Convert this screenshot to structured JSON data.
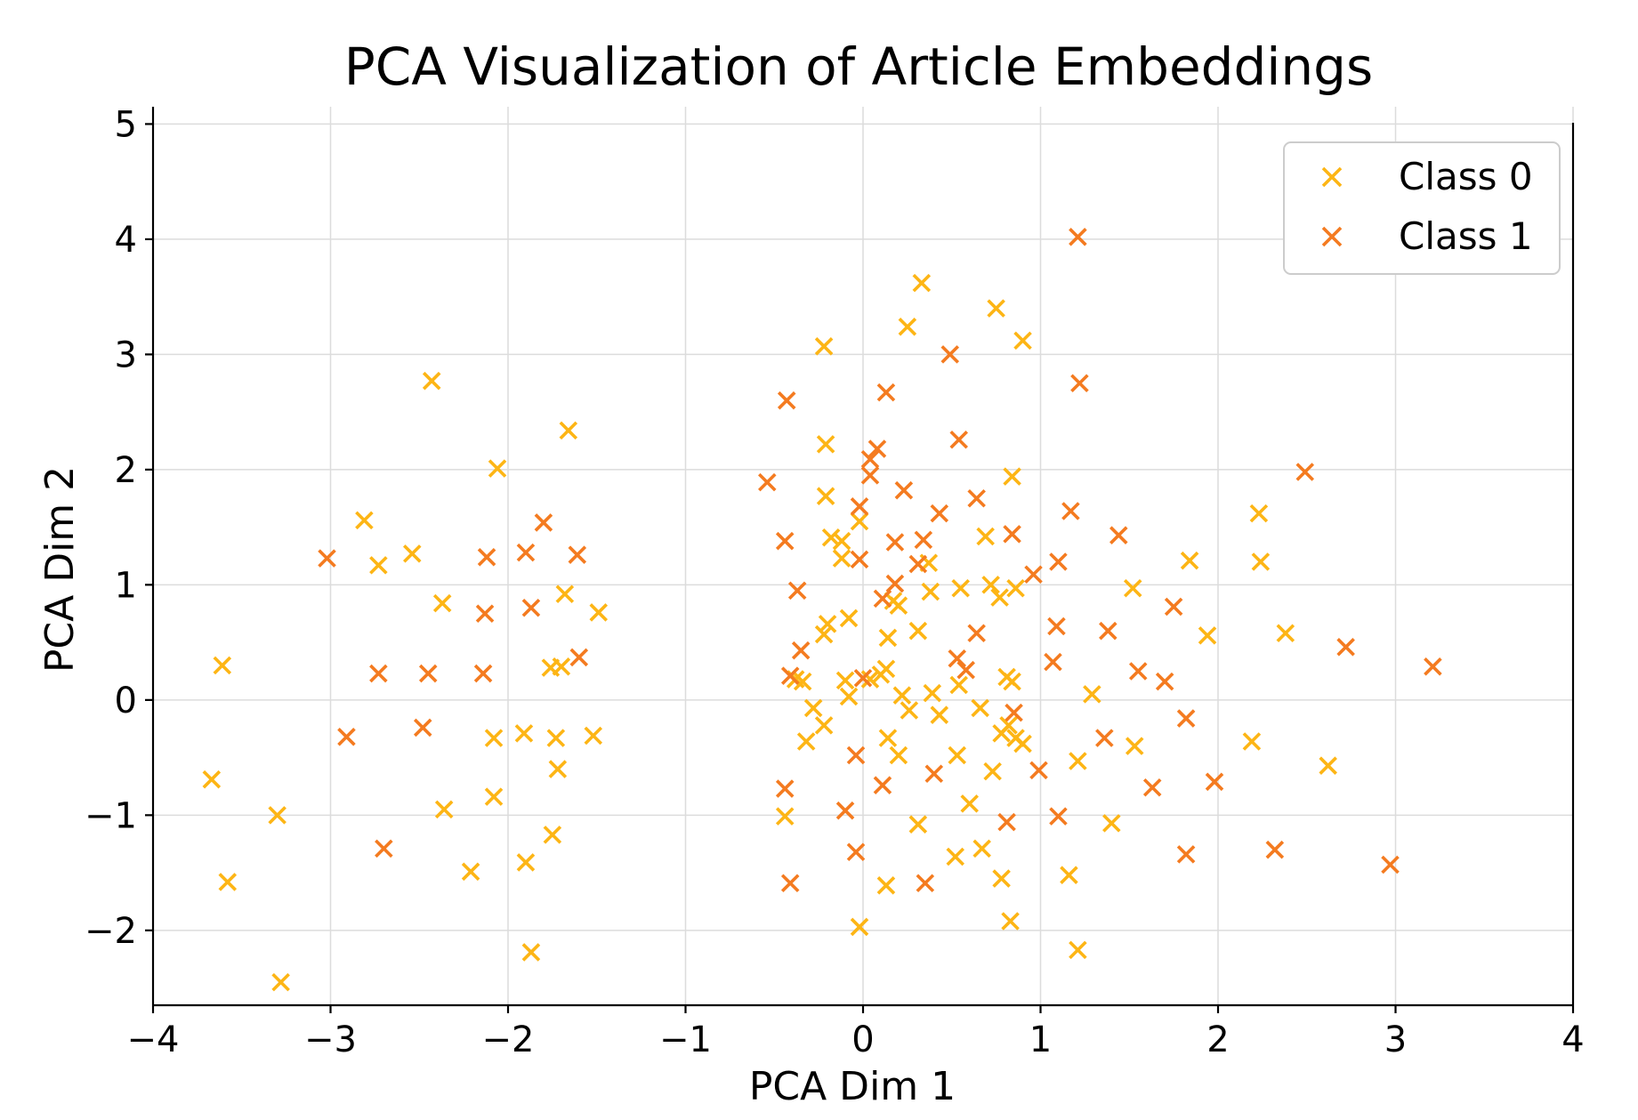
{
  "chart_data": {
    "type": "scatter",
    "title": "PCA Visualization of Article Embeddings",
    "xlabel": "PCA Dim 1",
    "ylabel": "PCA Dim 2",
    "xlim": [
      -4,
      4
    ],
    "ylim": [
      -2.65,
      5.15
    ],
    "xticks": [
      -4,
      -3,
      -2,
      -1,
      0,
      1,
      2,
      3,
      4
    ],
    "yticks": [
      -2,
      -1,
      0,
      1,
      2,
      3,
      4,
      5
    ],
    "xtick_labels": [
      "−4",
      "−3",
      "−2",
      "−1",
      "0",
      "1",
      "2",
      "3",
      "4"
    ],
    "ytick_labels": [
      "−2",
      "−1",
      "0",
      "1",
      "2",
      "3",
      "4",
      "5"
    ],
    "grid": true,
    "marker": "x",
    "legend_position": "top-right",
    "series": [
      {
        "name": "Class 0",
        "color": "#FDB515",
        "points": [
          [
            0.33,
            3.62
          ],
          [
            0.75,
            3.4
          ],
          [
            0.9,
            3.12
          ],
          [
            0.25,
            3.24
          ],
          [
            -0.22,
            3.07
          ],
          [
            -2.43,
            2.77
          ],
          [
            -1.66,
            2.34
          ],
          [
            -0.21,
            2.22
          ],
          [
            -2.06,
            2.01
          ],
          [
            0.84,
            1.94
          ],
          [
            -0.21,
            1.77
          ],
          [
            2.23,
            1.62
          ],
          [
            -2.81,
            1.56
          ],
          [
            -0.18,
            1.41
          ],
          [
            -0.12,
            1.38
          ],
          [
            -0.02,
            1.55
          ],
          [
            0.69,
            1.42
          ],
          [
            -2.54,
            1.27
          ],
          [
            -2.73,
            1.17
          ],
          [
            -0.12,
            1.23
          ],
          [
            0.37,
            1.19
          ],
          [
            1.84,
            1.21
          ],
          [
            2.24,
            1.2
          ],
          [
            -1.68,
            0.92
          ],
          [
            0.38,
            0.94
          ],
          [
            0.55,
            0.97
          ],
          [
            0.72,
            1.0
          ],
          [
            0.77,
            0.89
          ],
          [
            0.86,
            0.97
          ],
          [
            1.52,
            0.97
          ],
          [
            0.2,
            0.82
          ],
          [
            0.17,
            0.86
          ],
          [
            -2.37,
            0.84
          ],
          [
            -1.49,
            0.76
          ],
          [
            -0.22,
            0.57
          ],
          [
            -0.2,
            0.66
          ],
          [
            -0.08,
            0.71
          ],
          [
            0.14,
            0.54
          ],
          [
            0.31,
            0.6
          ],
          [
            1.94,
            0.56
          ],
          [
            2.38,
            0.58
          ],
          [
            -3.61,
            0.3
          ],
          [
            -1.76,
            0.28
          ],
          [
            -1.7,
            0.29
          ],
          [
            -0.38,
            0.18
          ],
          [
            -0.34,
            0.16
          ],
          [
            -0.1,
            0.17
          ],
          [
            0.04,
            0.18
          ],
          [
            0.1,
            0.22
          ],
          [
            0.13,
            0.27
          ],
          [
            0.54,
            0.13
          ],
          [
            0.81,
            0.2
          ],
          [
            0.84,
            0.16
          ],
          [
            -0.08,
            0.03
          ],
          [
            0.22,
            0.04
          ],
          [
            0.39,
            0.06
          ],
          [
            1.29,
            0.05
          ],
          [
            -0.28,
            -0.07
          ],
          [
            0.26,
            -0.09
          ],
          [
            0.43,
            -0.13
          ],
          [
            0.66,
            -0.07
          ],
          [
            -0.22,
            -0.22
          ],
          [
            0.82,
            -0.22
          ],
          [
            0.78,
            -0.29
          ],
          [
            0.86,
            -0.33
          ],
          [
            -1.91,
            -0.29
          ],
          [
            -1.73,
            -0.33
          ],
          [
            -1.52,
            -0.31
          ],
          [
            -2.08,
            -0.33
          ],
          [
            -0.32,
            -0.36
          ],
          [
            0.14,
            -0.33
          ],
          [
            0.9,
            -0.38
          ],
          [
            1.53,
            -0.4
          ],
          [
            2.19,
            -0.36
          ],
          [
            0.2,
            -0.48
          ],
          [
            0.53,
            -0.48
          ],
          [
            1.21,
            -0.53
          ],
          [
            2.62,
            -0.57
          ],
          [
            -1.72,
            -0.6
          ],
          [
            0.73,
            -0.62
          ],
          [
            -3.67,
            -0.69
          ],
          [
            -2.08,
            -0.84
          ],
          [
            -2.36,
            -0.95
          ],
          [
            0.6,
            -0.9
          ],
          [
            -0.44,
            -1.01
          ],
          [
            -3.3,
            -1.0
          ],
          [
            0.31,
            -1.08
          ],
          [
            1.4,
            -1.07
          ],
          [
            -1.75,
            -1.17
          ],
          [
            0.67,
            -1.29
          ],
          [
            0.52,
            -1.36
          ],
          [
            -2.21,
            -1.49
          ],
          [
            -1.9,
            -1.41
          ],
          [
            1.16,
            -1.52
          ],
          [
            0.78,
            -1.55
          ],
          [
            0.13,
            -1.61
          ],
          [
            -3.58,
            -1.58
          ],
          [
            0.83,
            -1.92
          ],
          [
            -0.02,
            -1.97
          ],
          [
            1.21,
            -2.17
          ],
          [
            -1.87,
            -2.19
          ],
          [
            -3.28,
            -2.45
          ]
        ]
      },
      {
        "name": "Class 1",
        "color": "#F47B20",
        "points": [
          [
            1.21,
            4.02
          ],
          [
            0.49,
            3.0
          ],
          [
            1.22,
            2.75
          ],
          [
            0.13,
            2.67
          ],
          [
            -0.43,
            2.6
          ],
          [
            0.54,
            2.26
          ],
          [
            0.08,
            2.18
          ],
          [
            0.04,
            2.09
          ],
          [
            0.04,
            1.95
          ],
          [
            -0.54,
            1.89
          ],
          [
            0.23,
            1.82
          ],
          [
            2.49,
            1.98
          ],
          [
            -0.02,
            1.68
          ],
          [
            0.64,
            1.75
          ],
          [
            1.17,
            1.64
          ],
          [
            0.43,
            1.62
          ],
          [
            -1.8,
            1.54
          ],
          [
            1.44,
            1.43
          ],
          [
            0.84,
            1.44
          ],
          [
            -0.44,
            1.38
          ],
          [
            0.18,
            1.37
          ],
          [
            0.34,
            1.39
          ],
          [
            -1.9,
            1.28
          ],
          [
            -1.61,
            1.26
          ],
          [
            -2.12,
            1.24
          ],
          [
            -3.02,
            1.23
          ],
          [
            -0.02,
            1.22
          ],
          [
            0.31,
            1.18
          ],
          [
            1.1,
            1.2
          ],
          [
            0.96,
            1.09
          ],
          [
            0.18,
            1.01
          ],
          [
            0.11,
            0.88
          ],
          [
            -0.37,
            0.95
          ],
          [
            -1.87,
            0.8
          ],
          [
            -2.13,
            0.75
          ],
          [
            1.75,
            0.81
          ],
          [
            1.09,
            0.64
          ],
          [
            1.38,
            0.6
          ],
          [
            0.64,
            0.58
          ],
          [
            -0.35,
            0.43
          ],
          [
            2.72,
            0.46
          ],
          [
            -1.6,
            0.37
          ],
          [
            0.53,
            0.36
          ],
          [
            0.58,
            0.26
          ],
          [
            1.07,
            0.33
          ],
          [
            3.21,
            0.29
          ],
          [
            -2.73,
            0.23
          ],
          [
            -2.45,
            0.23
          ],
          [
            -2.14,
            0.23
          ],
          [
            -0.41,
            0.21
          ],
          [
            0.0,
            0.19
          ],
          [
            1.55,
            0.25
          ],
          [
            1.7,
            0.16
          ],
          [
            0.85,
            -0.11
          ],
          [
            -2.48,
            -0.24
          ],
          [
            -2.91,
            -0.32
          ],
          [
            1.82,
            -0.16
          ],
          [
            1.36,
            -0.33
          ],
          [
            -0.04,
            -0.48
          ],
          [
            0.99,
            -0.61
          ],
          [
            0.4,
            -0.64
          ],
          [
            0.11,
            -0.74
          ],
          [
            1.98,
            -0.71
          ],
          [
            1.63,
            -0.76
          ],
          [
            -0.44,
            -0.77
          ],
          [
            -0.1,
            -0.96
          ],
          [
            1.1,
            -1.01
          ],
          [
            0.81,
            -1.06
          ],
          [
            -2.7,
            -1.29
          ],
          [
            -0.04,
            -1.32
          ],
          [
            2.32,
            -1.3
          ],
          [
            1.82,
            -1.34
          ],
          [
            2.97,
            -1.43
          ],
          [
            -0.41,
            -1.59
          ],
          [
            0.35,
            -1.59
          ]
        ]
      }
    ]
  }
}
